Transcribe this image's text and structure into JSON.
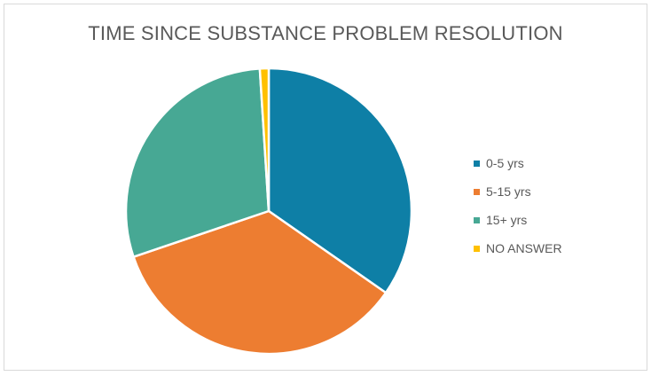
{
  "chart_data": {
    "type": "pie",
    "title": "TIME SINCE SUBSTANCE PROBLEM RESOLUTION",
    "categories": [
      "0-5 yrs",
      "5-15 yrs",
      "15+ yrs",
      "NO ANSWER"
    ],
    "values": [
      34.7,
      35.1,
      29.2,
      1.0
    ],
    "unit": "%",
    "colors": [
      "#0e7fa6",
      "#ed7d31",
      "#47a894",
      "#ffc000"
    ],
    "start_angle_deg": 0,
    "direction": "clockwise",
    "legend_position": "right"
  }
}
